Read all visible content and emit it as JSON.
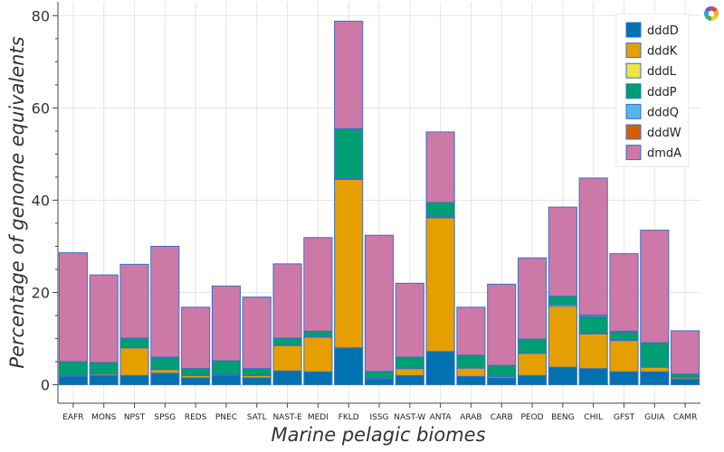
{
  "chart_data": {
    "type": "bar",
    "stacked": true,
    "xlabel": "Marine pelagic biomes",
    "ylabel": "Percentage of genome equivalents",
    "ylim": [
      -4,
      83
    ],
    "yticks": [
      0,
      20,
      40,
      60,
      80
    ],
    "grid": true,
    "legend_position": "top-right",
    "categories": [
      "EAFR",
      "MONS",
      "NPST",
      "SPSG",
      "REDS",
      "PNEC",
      "SATL",
      "NAST-E",
      "MEDI",
      "FKLD",
      "ISSG",
      "NAST-W",
      "ANTA",
      "ARAB",
      "CARB",
      "PEOD",
      "BENG",
      "CHIL",
      "GFST",
      "GUIA",
      "CAMR"
    ],
    "series": [
      {
        "name": "dddD",
        "color": "#0072b2",
        "values": [
          1.8,
          2.0,
          2.0,
          2.5,
          1.5,
          2.0,
          1.5,
          3.0,
          2.8,
          8.0,
          1.2,
          2.0,
          7.2,
          1.8,
          1.5,
          2.0,
          3.8,
          3.5,
          2.8,
          2.8,
          1.2
        ]
      },
      {
        "name": "dddK",
        "color": "#e69f00",
        "values": [
          0.2,
          0.3,
          6.0,
          0.8,
          0.5,
          0.2,
          0.5,
          5.5,
          7.5,
          36.5,
          0.2,
          1.5,
          29.0,
          1.8,
          0.3,
          4.8,
          13.2,
          7.5,
          6.8,
          1.0,
          0.3
        ]
      },
      {
        "name": "dddL",
        "color": "#f0e442",
        "values": [
          0,
          0,
          0.1,
          0,
          0,
          0,
          0,
          0.1,
          0.1,
          0.2,
          0,
          0,
          0.2,
          0,
          0,
          0,
          0.3,
          0.2,
          0.1,
          0,
          0
        ]
      },
      {
        "name": "dddP",
        "color": "#009e73",
        "values": [
          3.0,
          2.5,
          2.0,
          2.5,
          1.5,
          3.0,
          1.5,
          1.5,
          1.2,
          10.8,
          1.5,
          2.5,
          3.1,
          2.8,
          2.4,
          3.1,
          1.9,
          3.6,
          1.7,
          5.3,
          0.8
        ]
      },
      {
        "name": "dddQ",
        "color": "#56b4e9",
        "values": [
          0,
          0,
          0,
          0.2,
          0,
          0,
          0,
          0,
          0,
          0,
          0,
          0,
          0,
          0,
          0,
          0,
          0,
          0.3,
          0.2,
          0,
          0
        ]
      },
      {
        "name": "dddW",
        "color": "#d55e00",
        "values": [
          0,
          0,
          0,
          0,
          0,
          0,
          0,
          0,
          0,
          0,
          0,
          0,
          0,
          0,
          0,
          0,
          0,
          0,
          0,
          0,
          0
        ]
      },
      {
        "name": "dmdA",
        "color": "#cc79a7",
        "values": [
          23.6,
          19.0,
          16.0,
          24.0,
          13.3,
          16.2,
          15.5,
          16.1,
          20.3,
          23.3,
          29.5,
          16.0,
          15.3,
          10.4,
          17.6,
          17.6,
          19.3,
          29.7,
          16.8,
          24.4,
          9.4
        ]
      }
    ]
  },
  "toolbar": {
    "logo_icon": "bokeh-logo-icon"
  }
}
